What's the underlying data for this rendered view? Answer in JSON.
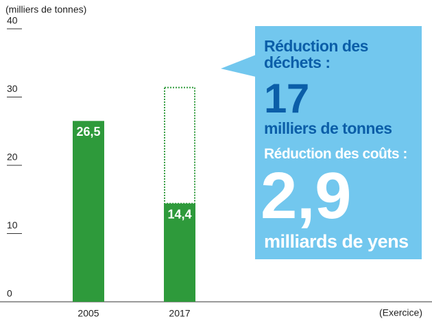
{
  "chart_data": {
    "type": "bar",
    "unit_label": "(milliers de tonnes)",
    "xlabel": "(Exercice)",
    "categories": [
      "2005",
      "2017"
    ],
    "values": [
      26.5,
      14.4
    ],
    "value_labels": [
      "26,5",
      "14,4"
    ],
    "color": "#2e9a3b",
    "ylim": [
      0,
      40
    ],
    "yticks": [
      0,
      10,
      20,
      30,
      40
    ],
    "callout": {
      "waste_label": "Réduction des déchets :",
      "waste_value": 17,
      "waste_unit": "milliers de tonnes",
      "cost_label": "Réduction des coûts :",
      "cost_value": 2.9,
      "cost_value_label": "2,9",
      "cost_unit": "milliards de yens",
      "color": "#72c7ee"
    }
  }
}
